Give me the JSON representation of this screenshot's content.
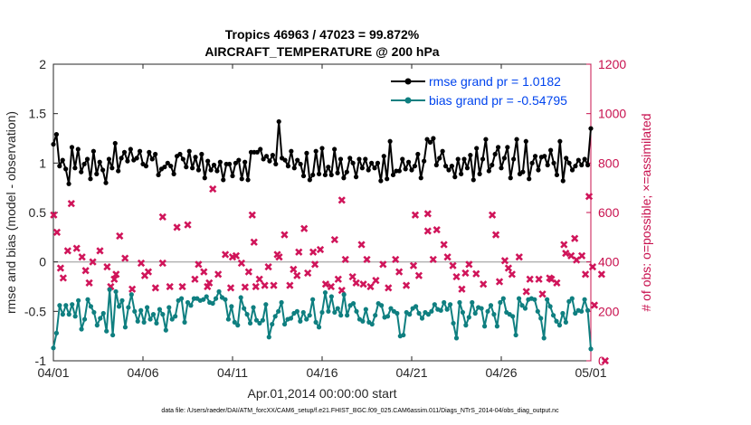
{
  "chart_data": {
    "type": "line",
    "title_line1": "Tropics 46963 / 47023 = 99.872%",
    "title_line2": "AIRCRAFT_TEMPERATURE @ 200 hPa",
    "xlabel": "Apr.01,2014 00:00:00 start",
    "ylabel_left": "rmse and bias (model - observation)",
    "ylabel_right": "# of obs: o=possible; ×=assimilated",
    "footer": "data file: /Users/raeder/DAI/ATM_forcXX/CAM6_setup/f.e21.FHIST_BGC.f09_025.CAM6assim.011/Diags_NTrS_2014-04/obs_diag_output.nc",
    "x_tick_labels": [
      "04/01",
      "04/06",
      "04/11",
      "04/16",
      "04/21",
      "04/26",
      "05/01"
    ],
    "xlim": [
      0,
      30
    ],
    "ylim_left": [
      -1,
      2
    ],
    "ylim_right": [
      0,
      1200
    ],
    "y_ticks_left": [
      "-1",
      "-0.5",
      "0",
      "0.5",
      "1",
      "1.5",
      "2"
    ],
    "y_ticks_right": [
      "0",
      "200",
      "400",
      "600",
      "800",
      "1000",
      "1200"
    ],
    "colors": {
      "rmse": "#000000",
      "bias": "#0f7f80",
      "obs": "#d0155a",
      "axis_right": "#c8104e",
      "legend_text": "#0044ee",
      "zero_line": "#b3b3b3"
    },
    "series": [
      {
        "name": "rmse grand pr = 1.0182",
        "axis": "left",
        "values": [
          1.19,
          1.29,
          0.97,
          1.03,
          0.94,
          0.79,
          1.16,
          0.95,
          1.14,
          0.91,
          0.99,
          1.04,
          0.84,
          1.12,
          0.89,
          1.01,
          0.93,
          0.8,
          1.04,
          0.95,
          1.2,
          0.92,
          1.05,
          1.11,
          1.02,
          1.14,
          1.03,
          1.05,
          1.12,
          0.99,
          0.97,
          1.11,
          1.04,
          1.09,
          0.88,
          0.94,
          0.96,
          1.0,
          0.97,
          0.89,
          1.07,
          1.09,
          1.04,
          0.96,
          1.12,
          0.95,
          1.06,
          0.93,
          1.09,
          0.85,
          1.02,
          0.93,
          0.98,
          0.92,
          1.01,
          0.83,
          0.99,
          0.99,
          0.87,
          1.0,
          1.03,
          0.84,
          1.01,
          0.83,
          1.11,
          1.11,
          1.11,
          1.14,
          1.04,
          1.07,
          1.02,
          1.08,
          0.99,
          1.42,
          1.05,
          1.03,
          0.97,
          1.12,
          0.95,
          1.03,
          0.99,
          0.87,
          1.1,
          0.83,
          0.88,
          1.12,
          0.89,
          1.15,
          0.88,
          0.96,
          0.88,
          1.14,
          0.9,
          1.04,
          0.85,
          0.91,
          1.05,
          1.0,
          0.86,
          1.04,
          0.95,
          1.04,
          0.93,
          1.0,
          0.95,
          1.0,
          0.82,
          1.07,
          0.84,
          1.22,
          0.88,
          0.92,
          0.92,
          1.04,
          0.94,
          1.01,
          0.93,
          0.97,
          1.09,
          0.85,
          1.02,
          1.24,
          1.21,
          1.25,
          0.98,
          1.05,
          1.12,
          0.97,
          0.93,
          0.97,
          0.86,
          1.04,
          0.89,
          1.04,
          0.95,
          1.08,
          0.83,
          1.15,
          0.89,
          1.04,
          1.24,
          0.92,
          0.98,
          1.09,
          1.16,
          0.95,
          1.05,
          1.16,
          0.85,
          1.04,
          1.24,
          0.89,
          0.91,
          1.22,
          0.84,
          1.0,
          1.07,
          0.93,
          1.06,
          1.07,
          0.98,
          1.13,
          1.0,
          0.88,
          1.22,
          0.82,
          1.05,
          1.0,
          0.93,
          0.97,
          1.03,
          0.98,
          1.04,
          0.98,
          1.35
        ]
      },
      {
        "name": "bias grand pr = -0.54795",
        "axis": "left",
        "values": [
          -0.87,
          -0.72,
          -0.44,
          -0.53,
          -0.44,
          -0.53,
          -0.43,
          -0.55,
          -0.39,
          -0.68,
          -0.58,
          -0.38,
          -0.45,
          -0.51,
          -0.64,
          -0.57,
          -0.52,
          -0.7,
          -0.28,
          -0.74,
          -0.3,
          -0.45,
          -0.39,
          -0.66,
          -0.46,
          -0.33,
          -0.5,
          -0.6,
          -0.49,
          -0.61,
          -0.46,
          -0.58,
          -0.53,
          -0.62,
          -0.48,
          -0.53,
          -0.69,
          -0.46,
          -0.58,
          -0.55,
          -0.39,
          -0.37,
          -0.61,
          -0.41,
          -0.44,
          -0.37,
          -0.37,
          -0.39,
          -0.38,
          -0.35,
          -0.41,
          -0.42,
          -0.37,
          -0.3,
          -0.36,
          -0.38,
          -0.58,
          -0.45,
          -0.61,
          -0.64,
          -0.36,
          -0.47,
          -0.53,
          -0.62,
          -0.46,
          -0.59,
          -0.62,
          -0.59,
          -0.43,
          -0.76,
          -0.63,
          -0.55,
          -0.5,
          -0.41,
          -0.63,
          -0.58,
          -0.57,
          -0.52,
          -0.5,
          -0.6,
          -0.51,
          -0.58,
          -0.54,
          -0.38,
          -0.61,
          -0.66,
          -0.51,
          -0.31,
          -0.5,
          -0.35,
          -0.51,
          -0.47,
          -0.54,
          -0.33,
          -0.54,
          -0.44,
          -0.42,
          -0.5,
          -0.58,
          -0.6,
          -0.48,
          -0.61,
          -0.63,
          -0.54,
          -0.42,
          -0.44,
          -0.56,
          -0.55,
          -0.47,
          -0.5,
          -0.52,
          -0.75,
          -0.74,
          -0.51,
          -0.53,
          -0.47,
          -0.45,
          -0.52,
          -0.57,
          -0.51,
          -0.53,
          -0.5,
          -0.43,
          -0.48,
          -0.49,
          -0.41,
          -0.48,
          -0.43,
          -0.62,
          -0.77,
          -0.41,
          -0.51,
          -0.64,
          -0.56,
          -0.41,
          -0.52,
          -0.46,
          -0.47,
          -0.65,
          -0.5,
          -0.44,
          -0.53,
          -0.65,
          -0.41,
          -0.37,
          -0.51,
          -0.53,
          -0.55,
          -0.74,
          -0.37,
          -0.44,
          -0.47,
          -0.38,
          -0.37,
          -0.38,
          -0.5,
          -0.57,
          -0.77,
          -0.38,
          -0.45,
          -0.54,
          -0.6,
          -0.64,
          -0.52,
          -0.61,
          -0.4,
          -0.37,
          -0.52,
          -0.49,
          -0.5,
          -0.38,
          -0.49,
          -0.88
        ]
      }
    ],
    "assimilated_counts": {
      "axis": "right",
      "points": [
        [
          0.02,
          590
        ],
        [
          0.2,
          520
        ],
        [
          0.4,
          375
        ],
        [
          0.55,
          335
        ],
        [
          0.8,
          445
        ],
        [
          1.0,
          636
        ],
        [
          1.3,
          455
        ],
        [
          1.6,
          420
        ],
        [
          1.8,
          365
        ],
        [
          2.0,
          315
        ],
        [
          2.2,
          400
        ],
        [
          2.6,
          445
        ],
        [
          3.0,
          380
        ],
        [
          3.2,
          300
        ],
        [
          3.4,
          330
        ],
        [
          3.5,
          350
        ],
        [
          3.7,
          505
        ],
        [
          4.0,
          415
        ],
        [
          4.4,
          290
        ],
        [
          4.9,
          395
        ],
        [
          5.1,
          345
        ],
        [
          5.3,
          360
        ],
        [
          5.7,
          295
        ],
        [
          6.1,
          395
        ],
        [
          6.1,
          582
        ],
        [
          6.5,
          300
        ],
        [
          6.9,
          540
        ],
        [
          7.2,
          300
        ],
        [
          7.5,
          550
        ],
        [
          7.9,
          330
        ],
        [
          8.1,
          390
        ],
        [
          8.4,
          360
        ],
        [
          8.6,
          300
        ],
        [
          8.7,
          315
        ],
        [
          8.9,
          695
        ],
        [
          9.2,
          350
        ],
        [
          9.6,
          430
        ],
        [
          9.9,
          295
        ],
        [
          10.0,
          420
        ],
        [
          10.2,
          425
        ],
        [
          10.5,
          395
        ],
        [
          10.7,
          298
        ],
        [
          10.9,
          360
        ],
        [
          11.1,
          590
        ],
        [
          11.2,
          480
        ],
        [
          11.3,
          300
        ],
        [
          11.5,
          330
        ],
        [
          11.8,
          305
        ],
        [
          12.0,
          380
        ],
        [
          12.3,
          305
        ],
        [
          12.5,
          430
        ],
        [
          12.6,
          420
        ],
        [
          12.9,
          510
        ],
        [
          13.2,
          305
        ],
        [
          13.4,
          370
        ],
        [
          13.6,
          345
        ],
        [
          13.7,
          440
        ],
        [
          14.0,
          535
        ],
        [
          14.2,
          355
        ],
        [
          14.5,
          440
        ],
        [
          14.6,
          390
        ],
        [
          14.9,
          450
        ],
        [
          15.2,
          310
        ],
        [
          15.5,
          300
        ],
        [
          15.7,
          490
        ],
        [
          15.9,
          330
        ],
        [
          16.1,
          285
        ],
        [
          16.1,
          650
        ],
        [
          16.3,
          410
        ],
        [
          16.7,
          340
        ],
        [
          16.9,
          315
        ],
        [
          17.2,
          470
        ],
        [
          17.3,
          310
        ],
        [
          17.5,
          410
        ],
        [
          17.7,
          300
        ],
        [
          18.0,
          325
        ],
        [
          18.4,
          390
        ],
        [
          18.7,
          295
        ],
        [
          19.1,
          410
        ],
        [
          19.3,
          360
        ],
        [
          19.7,
          305
        ],
        [
          20.1,
          385
        ],
        [
          20.2,
          590
        ],
        [
          20.4,
          345
        ],
        [
          20.9,
          525
        ],
        [
          20.9,
          595
        ],
        [
          21.2,
          410
        ],
        [
          21.4,
          530
        ],
        [
          21.8,
          470
        ],
        [
          22.0,
          420
        ],
        [
          22.3,
          385
        ],
        [
          22.5,
          340
        ],
        [
          22.8,
          290
        ],
        [
          23.0,
          355
        ],
        [
          23.2,
          390
        ],
        [
          23.6,
          352
        ],
        [
          24.0,
          310
        ],
        [
          24.5,
          590
        ],
        [
          24.7,
          510
        ],
        [
          24.9,
          320
        ],
        [
          25.2,
          405
        ],
        [
          25.4,
          375
        ],
        [
          25.6,
          350
        ],
        [
          26.0,
          420
        ],
        [
          26.4,
          280
        ],
        [
          26.6,
          330
        ],
        [
          27.1,
          330
        ],
        [
          27.3,
          270
        ],
        [
          27.7,
          335
        ],
        [
          27.8,
          330
        ],
        [
          28.1,
          315
        ],
        [
          28.5,
          470
        ],
        [
          28.6,
          435
        ],
        [
          28.9,
          425
        ],
        [
          29.1,
          495
        ],
        [
          29.2,
          408
        ],
        [
          29.5,
          425
        ],
        [
          29.7,
          350
        ],
        [
          29.9,
          665
        ],
        [
          30.1,
          380
        ],
        [
          30.2,
          225
        ],
        [
          30.6,
          350
        ],
        [
          30.8,
          0
        ]
      ]
    },
    "legend_location": "top-right"
  }
}
